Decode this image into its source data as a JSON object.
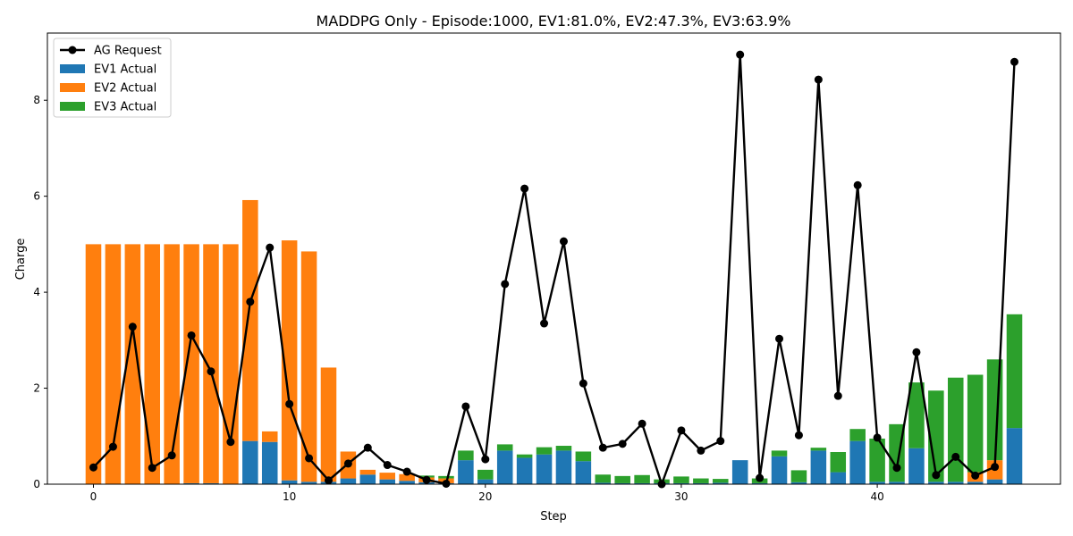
{
  "chart_data": {
    "type": "bar",
    "title": "MADDPG Only - Episode:1000, EV1:81.0%, EV2:47.3%, EV3:63.9%",
    "xlabel": "Step",
    "ylabel": "Charge",
    "xlim": [
      -2.35,
      49.35
    ],
    "ylim": [
      0,
      9.4
    ],
    "xticks": [
      0,
      10,
      20,
      30,
      40
    ],
    "yticks": [
      0,
      2,
      4,
      6,
      8
    ],
    "stacked": true,
    "legend_position": "top-left",
    "x": [
      0,
      1,
      2,
      3,
      4,
      5,
      6,
      7,
      8,
      9,
      10,
      11,
      12,
      13,
      14,
      15,
      16,
      17,
      18,
      19,
      20,
      21,
      22,
      23,
      24,
      25,
      26,
      27,
      28,
      29,
      30,
      31,
      32,
      33,
      34,
      35,
      36,
      37,
      38,
      39,
      40,
      41,
      42,
      43,
      44,
      45,
      46,
      47
    ],
    "series": [
      {
        "name": "EV1 Actual",
        "color": "#1f77b4",
        "values": [
          0,
          0,
          0,
          0,
          0,
          0.02,
          0.02,
          0,
          0.9,
          0.88,
          0.08,
          0.05,
          0.05,
          0.12,
          0.2,
          0.1,
          0.07,
          0.04,
          0.02,
          0.5,
          0.1,
          0.7,
          0.55,
          0.62,
          0.7,
          0.48,
          0.03,
          0.02,
          0.02,
          0.02,
          0.02,
          0.02,
          0.03,
          0.5,
          0.02,
          0.58,
          0.04,
          0.7,
          0.25,
          0.9,
          0.05,
          0.05,
          0.75,
          0.05,
          0.05,
          0.05,
          0.1,
          1.17
        ]
      },
      {
        "name": "EV2 Actual",
        "color": "#ff7f0e",
        "values": [
          5,
          5,
          5,
          5,
          5,
          4.98,
          4.98,
          5,
          5.02,
          0.22,
          5,
          4.8,
          2.38,
          0.56,
          0.1,
          0.14,
          0.14,
          0.1,
          0.1,
          0,
          0,
          0,
          0,
          0,
          0,
          0,
          0,
          0,
          0,
          0,
          0,
          0,
          0,
          0,
          0,
          0,
          0,
          0,
          0,
          0,
          0,
          0,
          0,
          0,
          0,
          0.2,
          0.4,
          0
        ]
      },
      {
        "name": "EV3 Actual",
        "color": "#2ca02c",
        "values": [
          0,
          0,
          0,
          0,
          0,
          0,
          0,
          0,
          0,
          0,
          0,
          0,
          0,
          0,
          0,
          0,
          0,
          0.04,
          0.05,
          0.2,
          0.2,
          0.13,
          0.07,
          0.15,
          0.1,
          0.2,
          0.17,
          0.15,
          0.17,
          0.08,
          0.14,
          0.1,
          0.08,
          0,
          0.1,
          0.12,
          0.25,
          0.06,
          0.42,
          0.25,
          0.9,
          1.2,
          1.37,
          1.9,
          2.17,
          2.03,
          2.1,
          2.37
        ]
      }
    ],
    "line": {
      "name": "AG Request",
      "color": "#000000",
      "values": [
        0.35,
        0.78,
        3.28,
        0.34,
        0.6,
        3.1,
        2.35,
        0.88,
        3.8,
        4.93,
        1.67,
        0.54,
        0.08,
        0.43,
        0.76,
        0.4,
        0.26,
        0.09,
        0.01,
        1.62,
        0.52,
        4.17,
        6.16,
        3.35,
        5.06,
        2.1,
        0.76,
        0.84,
        1.26,
        0,
        1.12,
        0.7,
        0.9,
        8.95,
        0.13,
        3.03,
        1.02,
        8.43,
        1.84,
        6.23,
        0.97,
        0.34,
        2.75,
        0.19,
        0.57,
        0.18,
        0.36,
        8.8
      ]
    }
  }
}
